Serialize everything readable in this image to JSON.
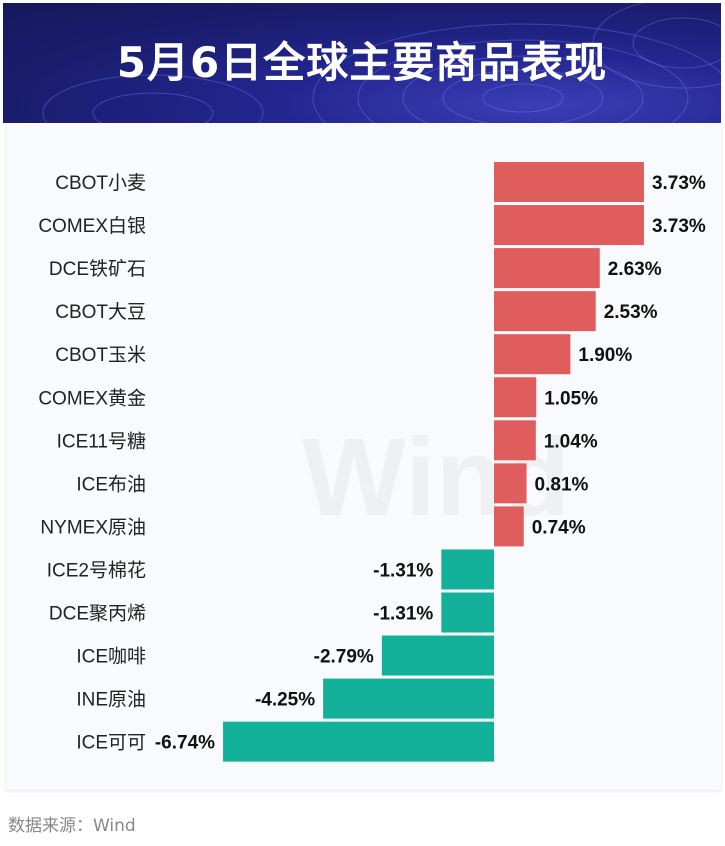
{
  "title": "5月6日全球主要商品表现",
  "source": "数据来源：Wind",
  "watermark": "Wind",
  "colors": {
    "positive": "#e05d5d",
    "negative": "#13b09a",
    "header": "#1f2280"
  },
  "chart_data": {
    "type": "bar",
    "orientation": "horizontal",
    "categories": [
      "CBOT小麦",
      "COMEX白银",
      "DCE铁矿石",
      "CBOT大豆",
      "CBOT玉米",
      "COMEX黄金",
      "ICE11号糖",
      "ICE布油",
      "NYMEX原油",
      "ICE2号棉花",
      "DCE聚丙烯",
      "ICE咖啡",
      "INE原油",
      "ICE可可"
    ],
    "values": [
      3.73,
      3.73,
      2.63,
      2.53,
      1.9,
      1.05,
      1.04,
      0.81,
      0.74,
      -1.31,
      -1.31,
      -2.79,
      -4.25,
      -6.74
    ],
    "labels": [
      "3.73%",
      "3.73%",
      "2.63%",
      "2.53%",
      "1.90%",
      "1.05%",
      "1.04%",
      "0.81%",
      "0.74%",
      "-1.31%",
      "-1.31%",
      "-2.79%",
      "-4.25%",
      "-6.74%"
    ],
    "unit": "%",
    "grid": false,
    "legend": "none"
  }
}
